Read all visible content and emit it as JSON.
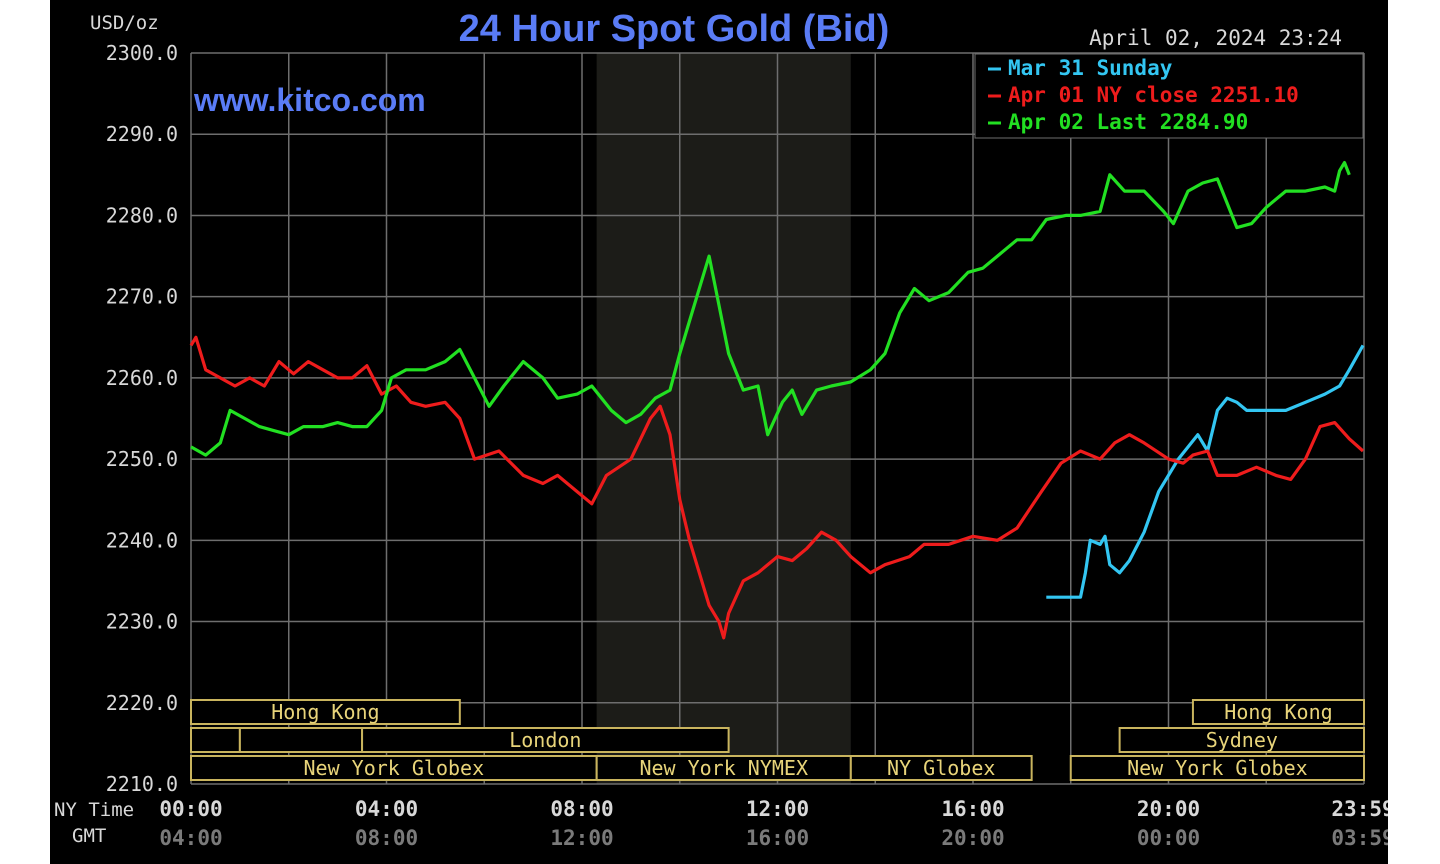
{
  "chart_data": {
    "type": "line",
    "title": "24 Hour Spot Gold (Bid)",
    "ylabel": "USD/oz",
    "watermark": "www.kitco.com",
    "timestamp": "April 02, 2024 23:24",
    "ylim": [
      2210,
      2300
    ],
    "y_ticks": [
      "2300.0",
      "2290.0",
      "2280.0",
      "2270.0",
      "2260.0",
      "2250.0",
      "2240.0",
      "2230.0",
      "2220.0",
      "2210.0"
    ],
    "x_row_labels": {
      "ny": "NY Time",
      "gmt": "GMT"
    },
    "x_ticks_ny": [
      "00:00",
      "04:00",
      "08:00",
      "12:00",
      "16:00",
      "20:00",
      "23:59"
    ],
    "x_ticks_gmt": [
      "04:00",
      "08:00",
      "12:00",
      "16:00",
      "20:00",
      "00:00",
      "03:59"
    ],
    "x_tick_hours": [
      0,
      4,
      8,
      12,
      16,
      20,
      23.98
    ],
    "grid": true,
    "legend_position": "top-right",
    "colors": {
      "background": "#000000",
      "grid": "#6e6e6e",
      "axis_text": "#d8d8d8",
      "gmt_text": "#7a7a7a",
      "title": "#5a7cf6",
      "session_text": "#e8d47a",
      "session_border": "#c9b45e",
      "shading": "#1c1c18"
    },
    "shaded_region_hours": [
      8.3,
      13.5
    ],
    "sessions": [
      {
        "label": "Hong Kong",
        "row": 0,
        "start": 0,
        "end": 5.5
      },
      {
        "label": "",
        "row": 1,
        "start": 0,
        "end": 1.0
      },
      {
        "label": "",
        "row": 1,
        "start": 1.0,
        "end": 3.5
      },
      {
        "label": "London",
        "row": 1,
        "start": 3.5,
        "end": 11.0
      },
      {
        "label": "New York Globex",
        "row": 2,
        "start": 0,
        "end": 8.3
      },
      {
        "label": "New York NYMEX",
        "row": 2,
        "start": 8.3,
        "end": 13.5
      },
      {
        "label": "NY Globex",
        "row": 2,
        "start": 13.5,
        "end": 17.2
      },
      {
        "label": "Hong Kong",
        "row": 0,
        "start": 20.5,
        "end": 24
      },
      {
        "label": "Sydney",
        "row": 1,
        "start": 19.0,
        "end": 24
      },
      {
        "label": "New York Globex",
        "row": 2,
        "start": 18.0,
        "end": 24
      }
    ],
    "series": [
      {
        "name": "Mar 31 Sunday",
        "color": "#33c6f2",
        "points": [
          [
            17.5,
            2233.0
          ],
          [
            18.2,
            2233.0
          ],
          [
            18.3,
            2236.0
          ],
          [
            18.4,
            2240.0
          ],
          [
            18.6,
            2239.5
          ],
          [
            18.7,
            2240.5
          ],
          [
            18.8,
            2237.0
          ],
          [
            19.0,
            2236.0
          ],
          [
            19.2,
            2237.5
          ],
          [
            19.5,
            2241.0
          ],
          [
            19.8,
            2246.0
          ],
          [
            20.2,
            2250.0
          ],
          [
            20.6,
            2253.0
          ],
          [
            20.8,
            2251.0
          ],
          [
            21.0,
            2256.0
          ],
          [
            21.2,
            2257.5
          ],
          [
            21.4,
            2257.0
          ],
          [
            21.6,
            2256.0
          ],
          [
            22.0,
            2256.0
          ],
          [
            22.4,
            2256.0
          ],
          [
            22.8,
            2257.0
          ],
          [
            23.2,
            2258.0
          ],
          [
            23.5,
            2259.0
          ],
          [
            23.7,
            2261.0
          ],
          [
            23.98,
            2264.0
          ]
        ]
      },
      {
        "name": "Apr 01 NY close 2251.10",
        "color": "#ee1c1c",
        "points": [
          [
            0,
            2264.0
          ],
          [
            0.1,
            2265.0
          ],
          [
            0.3,
            2261.0
          ],
          [
            0.6,
            2260.0
          ],
          [
            0.9,
            2259.0
          ],
          [
            1.2,
            2260.0
          ],
          [
            1.5,
            2259.0
          ],
          [
            1.8,
            2262.0
          ],
          [
            2.1,
            2260.5
          ],
          [
            2.4,
            2262.0
          ],
          [
            2.7,
            2261.0
          ],
          [
            3.0,
            2260.0
          ],
          [
            3.3,
            2260.0
          ],
          [
            3.6,
            2261.5
          ],
          [
            3.9,
            2258.0
          ],
          [
            4.2,
            2259.0
          ],
          [
            4.5,
            2257.0
          ],
          [
            4.8,
            2256.5
          ],
          [
            5.2,
            2257.0
          ],
          [
            5.5,
            2255.0
          ],
          [
            5.8,
            2250.0
          ],
          [
            6.3,
            2251.0
          ],
          [
            6.8,
            2248.0
          ],
          [
            7.2,
            2247.0
          ],
          [
            7.5,
            2248.0
          ],
          [
            7.9,
            2246.0
          ],
          [
            8.2,
            2244.5
          ],
          [
            8.5,
            2248.0
          ],
          [
            9.0,
            2250.0
          ],
          [
            9.4,
            2255.0
          ],
          [
            9.6,
            2256.5
          ],
          [
            9.8,
            2253.0
          ],
          [
            10.0,
            2245.0
          ],
          [
            10.2,
            2240.0
          ],
          [
            10.4,
            2236.0
          ],
          [
            10.6,
            2232.0
          ],
          [
            10.8,
            2230.0
          ],
          [
            10.9,
            2228.0
          ],
          [
            11.0,
            2231.0
          ],
          [
            11.3,
            2235.0
          ],
          [
            11.6,
            2236.0
          ],
          [
            12.0,
            2238.0
          ],
          [
            12.3,
            2237.5
          ],
          [
            12.6,
            2239.0
          ],
          [
            12.9,
            2241.0
          ],
          [
            13.2,
            2240.0
          ],
          [
            13.5,
            2238.0
          ],
          [
            13.9,
            2236.0
          ],
          [
            14.2,
            2237.0
          ],
          [
            14.7,
            2238.0
          ],
          [
            15.0,
            2239.5
          ],
          [
            15.5,
            2239.5
          ],
          [
            16.0,
            2240.5
          ],
          [
            16.5,
            2240.0
          ],
          [
            16.9,
            2241.5
          ],
          [
            17.4,
            2246.0
          ],
          [
            17.8,
            2249.5
          ],
          [
            18.2,
            2251.0
          ],
          [
            18.6,
            2250.0
          ],
          [
            18.9,
            2252.0
          ],
          [
            19.2,
            2253.0
          ],
          [
            19.5,
            2252.0
          ],
          [
            20.0,
            2250.0
          ],
          [
            20.3,
            2249.5
          ],
          [
            20.5,
            2250.5
          ],
          [
            20.8,
            2251.0
          ],
          [
            21.0,
            2248.0
          ],
          [
            21.4,
            2248.0
          ],
          [
            21.8,
            2249.0
          ],
          [
            22.2,
            2248.0
          ],
          [
            22.5,
            2247.5
          ],
          [
            22.8,
            2250.0
          ],
          [
            23.1,
            2254.0
          ],
          [
            23.4,
            2254.5
          ],
          [
            23.7,
            2252.5
          ],
          [
            23.98,
            2251.0
          ]
        ]
      },
      {
        "name": "Apr 02 Last 2284.90",
        "color": "#22e022",
        "points": [
          [
            0,
            2251.5
          ],
          [
            0.3,
            2250.5
          ],
          [
            0.6,
            2252.0
          ],
          [
            0.8,
            2256.0
          ],
          [
            1.1,
            2255.0
          ],
          [
            1.4,
            2254.0
          ],
          [
            1.7,
            2253.5
          ],
          [
            2.0,
            2253.0
          ],
          [
            2.3,
            2254.0
          ],
          [
            2.7,
            2254.0
          ],
          [
            3.0,
            2254.5
          ],
          [
            3.3,
            2254.0
          ],
          [
            3.6,
            2254.0
          ],
          [
            3.9,
            2256.0
          ],
          [
            4.1,
            2260.0
          ],
          [
            4.4,
            2261.0
          ],
          [
            4.8,
            2261.0
          ],
          [
            5.2,
            2262.0
          ],
          [
            5.5,
            2263.5
          ],
          [
            5.8,
            2260.0
          ],
          [
            6.1,
            2256.5
          ],
          [
            6.4,
            2259.0
          ],
          [
            6.8,
            2262.0
          ],
          [
            7.2,
            2260.0
          ],
          [
            7.5,
            2257.5
          ],
          [
            7.9,
            2258.0
          ],
          [
            8.2,
            2259.0
          ],
          [
            8.6,
            2256.0
          ],
          [
            8.9,
            2254.5
          ],
          [
            9.2,
            2255.5
          ],
          [
            9.5,
            2257.5
          ],
          [
            9.8,
            2258.5
          ],
          [
            10.0,
            2263.0
          ],
          [
            10.2,
            2267.0
          ],
          [
            10.5,
            2273.0
          ],
          [
            10.6,
            2275.0
          ],
          [
            10.8,
            2269.0
          ],
          [
            11.0,
            2263.0
          ],
          [
            11.3,
            2258.5
          ],
          [
            11.6,
            2259.0
          ],
          [
            11.8,
            2253.0
          ],
          [
            12.1,
            2257.0
          ],
          [
            12.3,
            2258.5
          ],
          [
            12.5,
            2255.5
          ],
          [
            12.8,
            2258.5
          ],
          [
            13.1,
            2259.0
          ],
          [
            13.5,
            2259.5
          ],
          [
            13.9,
            2261.0
          ],
          [
            14.2,
            2263.0
          ],
          [
            14.5,
            2268.0
          ],
          [
            14.8,
            2271.0
          ],
          [
            15.1,
            2269.5
          ],
          [
            15.5,
            2270.5
          ],
          [
            15.9,
            2273.0
          ],
          [
            16.2,
            2273.5
          ],
          [
            16.5,
            2275.0
          ],
          [
            16.9,
            2277.0
          ],
          [
            17.2,
            2277.0
          ],
          [
            17.5,
            2279.5
          ],
          [
            17.9,
            2280.0
          ],
          [
            18.2,
            2280.0
          ],
          [
            18.6,
            2280.5
          ],
          [
            18.8,
            2285.0
          ],
          [
            19.1,
            2283.0
          ],
          [
            19.5,
            2283.0
          ],
          [
            19.9,
            2280.5
          ],
          [
            20.1,
            2279.0
          ],
          [
            20.4,
            2283.0
          ],
          [
            20.7,
            2284.0
          ],
          [
            21.0,
            2284.5
          ],
          [
            21.4,
            2278.5
          ],
          [
            21.7,
            2279.0
          ],
          [
            22.0,
            2281.0
          ],
          [
            22.4,
            2283.0
          ],
          [
            22.8,
            2283.0
          ],
          [
            23.2,
            2283.5
          ],
          [
            23.4,
            2283.0
          ],
          [
            23.5,
            2285.5
          ],
          [
            23.6,
            2286.5
          ],
          [
            23.7,
            2285.0
          ]
        ]
      }
    ]
  }
}
